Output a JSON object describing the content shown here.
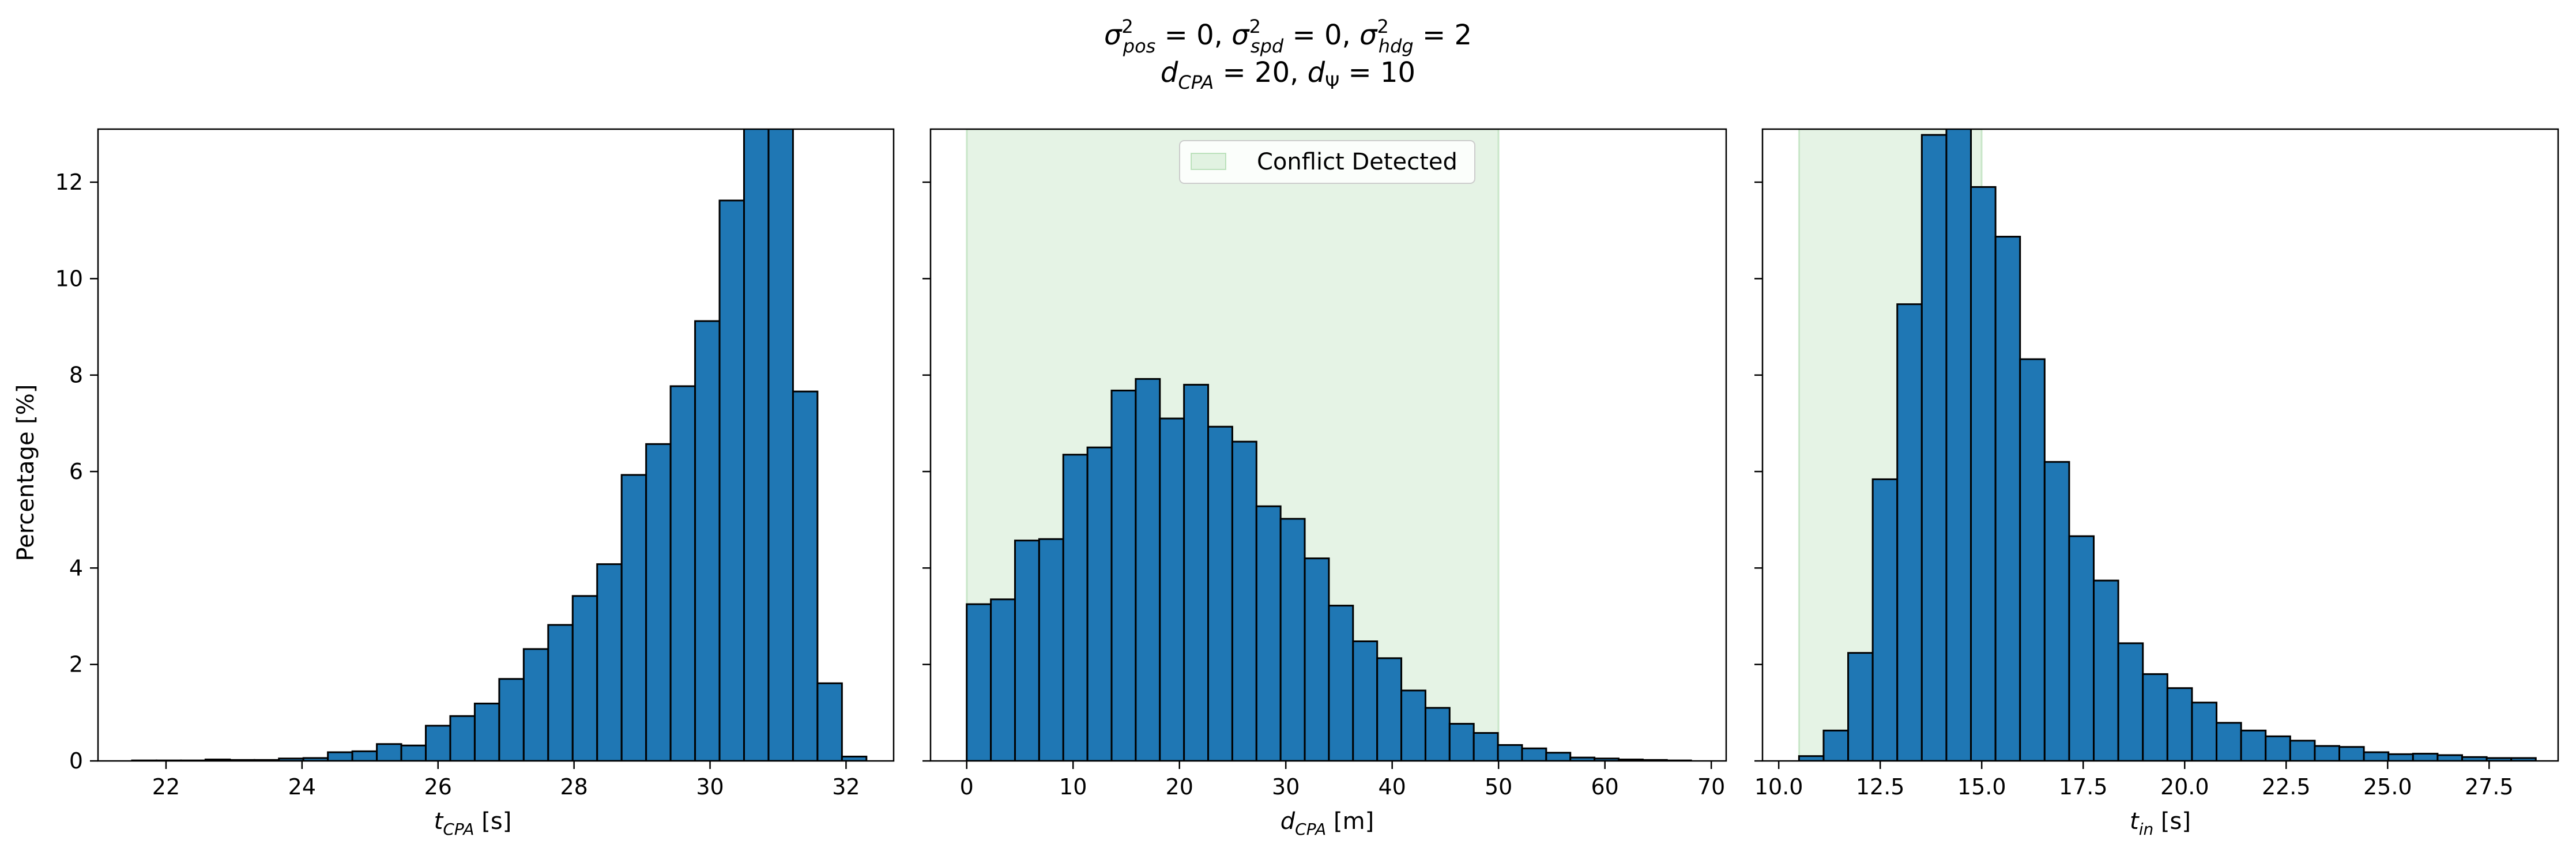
{
  "figure": {
    "title_line1": "σ²pos = 0, σ²spd = 0, σ²hdg = 2",
    "title_line2": "dCPA = 20, dΨ = 10",
    "bar_color": "#1f77b4",
    "edge_color": "#000000",
    "shade_color": "#2ca02c"
  },
  "chart_data": [
    {
      "type": "bar",
      "title": "",
      "xlabel": "tCPA [s]",
      "ylabel": "Percentage [%]",
      "xlim": [
        21.0,
        32.7
      ],
      "ylim": [
        0,
        13.1
      ],
      "xticks": [
        22,
        24,
        26,
        28,
        30,
        32
      ],
      "xtick_labels": [
        "22",
        "24",
        "26",
        "28",
        "30",
        "32"
      ],
      "yticks": [
        0,
        2,
        4,
        6,
        8,
        10,
        12
      ],
      "ytick_labels": [
        "0",
        "2",
        "4",
        "6",
        "8",
        "10",
        "12"
      ],
      "bin_edges": [
        21.5,
        21.86,
        22.22,
        22.58,
        22.94,
        23.3,
        23.66,
        24.02,
        24.38,
        24.74,
        25.1,
        25.46,
        25.82,
        26.18,
        26.54,
        26.9,
        27.26,
        27.62,
        27.98,
        28.34,
        28.7,
        29.06,
        29.42,
        29.78,
        30.14,
        30.5,
        30.86,
        31.22,
        31.58,
        31.94,
        32.3
      ],
      "values": [
        0.01,
        0.01,
        0.01,
        0.03,
        0.02,
        0.02,
        0.05,
        0.06,
        0.18,
        0.2,
        0.35,
        0.32,
        0.73,
        0.93,
        1.19,
        1.7,
        2.32,
        2.82,
        3.42,
        4.08,
        5.93,
        6.57,
        7.77,
        9.12,
        11.62,
        13.6,
        13.4,
        7.66,
        1.61,
        0.09
      ],
      "shaded_region": null
    },
    {
      "type": "bar",
      "title": "",
      "xlabel": "dCPA [m]",
      "ylabel": "",
      "xlim": [
        -3.4,
        71.4
      ],
      "ylim": [
        0,
        13.1
      ],
      "xticks": [
        0,
        10,
        20,
        30,
        40,
        50,
        60,
        70
      ],
      "xtick_labels": [
        "0",
        "10",
        "20",
        "30",
        "40",
        "50",
        "60",
        "70"
      ],
      "yticks": [
        0,
        2,
        4,
        6,
        8,
        10,
        12
      ],
      "ytick_labels": [
        "",
        "",
        "",
        "",
        "",
        "",
        ""
      ],
      "bin_edges": [
        0.0,
        2.27,
        4.54,
        6.81,
        9.08,
        11.35,
        13.62,
        15.89,
        18.16,
        20.43,
        22.7,
        24.97,
        27.24,
        29.51,
        31.78,
        34.05,
        36.32,
        38.59,
        40.86,
        43.13,
        45.4,
        47.67,
        49.94,
        52.21,
        54.48,
        56.75,
        59.02,
        61.29,
        63.56,
        65.83,
        68.1
      ],
      "values": [
        3.25,
        3.35,
        4.57,
        4.6,
        6.35,
        6.5,
        7.68,
        7.92,
        7.1,
        7.8,
        6.93,
        6.62,
        5.28,
        5.02,
        4.2,
        3.22,
        2.48,
        2.13,
        1.46,
        1.1,
        0.77,
        0.58,
        0.33,
        0.26,
        0.17,
        0.07,
        0.05,
        0.03,
        0.02,
        0.01
      ],
      "shaded_region": [
        0,
        50
      ],
      "legend": {
        "label": "Conflict Detected",
        "placement": "upper center"
      }
    },
    {
      "type": "bar",
      "title": "",
      "xlabel": "tin [s]",
      "ylabel": "",
      "xlim": [
        9.6,
        29.2
      ],
      "ylim": [
        0,
        13.1
      ],
      "xticks": [
        10.0,
        12.5,
        15.0,
        17.5,
        20.0,
        22.5,
        25.0,
        27.5
      ],
      "xtick_labels": [
        "10.0",
        "12.5",
        "15.0",
        "17.5",
        "20.0",
        "22.5",
        "25.0",
        "27.5"
      ],
      "yticks": [
        0,
        2,
        4,
        6,
        8,
        10,
        12
      ],
      "ytick_labels": [
        "",
        "",
        "",
        "",
        "",
        "",
        ""
      ],
      "bin_edges": [
        10.5,
        11.105,
        11.71,
        12.315,
        12.92,
        13.525,
        14.13,
        14.735,
        15.34,
        15.945,
        16.55,
        17.155,
        17.76,
        18.365,
        18.97,
        19.575,
        20.18,
        20.785,
        21.39,
        21.995,
        22.6,
        23.205,
        23.81,
        24.415,
        25.02,
        25.625,
        26.23,
        26.835,
        27.44,
        28.045,
        28.65
      ],
      "values": [
        0.1,
        0.63,
        2.24,
        5.84,
        9.47,
        12.98,
        13.2,
        11.9,
        10.87,
        8.33,
        6.2,
        4.66,
        3.74,
        2.44,
        1.8,
        1.51,
        1.21,
        0.79,
        0.63,
        0.51,
        0.42,
        0.31,
        0.29,
        0.18,
        0.14,
        0.15,
        0.12,
        0.08,
        0.06,
        0.06
      ],
      "shaded_region": [
        10.5,
        15.0
      ]
    }
  ]
}
